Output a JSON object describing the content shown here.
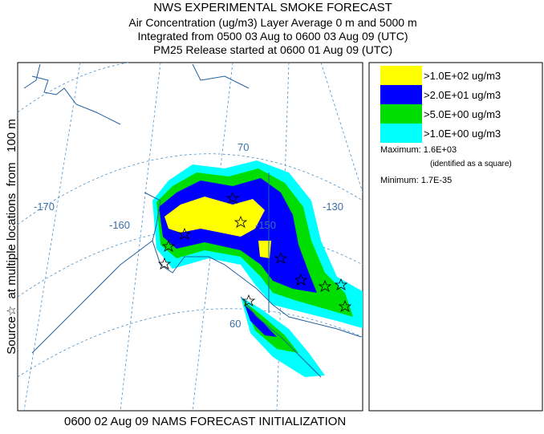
{
  "header": {
    "lines": [
      "NWS EXPERIMENTAL SMOKE FORECAST",
      "Air Concentration (ug/m3) Layer Average    0 m and  5000 m",
      "Integrated from 0500 03 Aug to 0600 03 Aug 09 (UTC)",
      "PM25 Release started at 0600 01 Aug 09 (UTC)"
    ]
  },
  "side_label": "Source☆  at multiple locations  from   100 m",
  "footer": "0600 02 Aug 09 NAMS FORECAST INITIALIZATION",
  "map": {
    "graticule_labels": [
      "-170",
      "-160",
      "-150",
      "-130",
      "70",
      "60"
    ]
  },
  "legend": {
    "entries": [
      {
        "label": ">1.0E+02 ug/m3",
        "color": "#ffff00"
      },
      {
        "label": ">2.0E+01 ug/m3",
        "color": "#0000ff"
      },
      {
        "label": ">5.0E+00 ug/m3",
        "color": "#00dd00"
      },
      {
        "label": ">1.0E+00 ug/m3",
        "color": "#00ffff"
      }
    ],
    "maximum": "Maximum: 1.6E+03",
    "maximum_note": "(identified as a square)",
    "minimum": "Minimum: 1.7E-35"
  }
}
